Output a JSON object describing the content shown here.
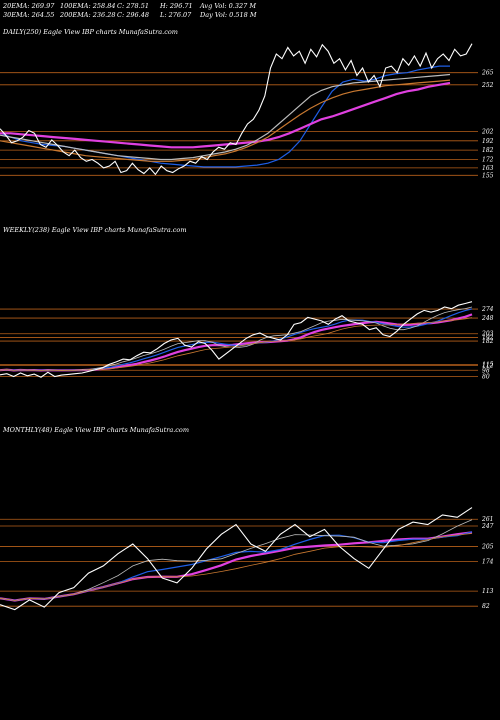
{
  "header": {
    "row1": [
      "20EMA: 269.97",
      "100EMA: 258.84",
      "C: 278.51",
      "H: 296.71",
      "Avg Vol: 0.327 M"
    ],
    "row2": [
      "30EMA: 264.55",
      "200EMA: 236.28",
      "C: 296.48",
      "L: 276.07",
      "Day Vol: 0.518 M"
    ]
  },
  "colors": {
    "price": "#ffffff",
    "ema_blue": "#1e5ee6",
    "ema_pink": "#e040e0",
    "ema_brown": "#c87830",
    "ema_grey": "#bbbbbb",
    "level": "#b8601a"
  },
  "chart_data": [
    {
      "type": "line",
      "title": "DAILY(250) Eagle  View  IBP charts MunafaSutra.com",
      "level_labels": [
        "265",
        "252",
        "202",
        "192",
        "182",
        "172",
        "163",
        "155"
      ],
      "levels": [
        265,
        252,
        202,
        192,
        182,
        172,
        163,
        155
      ],
      "ylim": [
        150,
        300
      ],
      "price": [
        205,
        198,
        190,
        192,
        196,
        203,
        200,
        188,
        185,
        193,
        187,
        180,
        176,
        182,
        174,
        170,
        172,
        168,
        163,
        165,
        170,
        158,
        160,
        168,
        161,
        157,
        163,
        156,
        165,
        160,
        158,
        162,
        165,
        170,
        168,
        175,
        172,
        180,
        185,
        183,
        190,
        188,
        200,
        210,
        215,
        225,
        240,
        270,
        285,
        280,
        292,
        283,
        288,
        275,
        290,
        282,
        295,
        288,
        275,
        280,
        268,
        278,
        262,
        270,
        255,
        262,
        250,
        270,
        272,
        265,
        280,
        273,
        283,
        272,
        286,
        270,
        280,
        285,
        278,
        290,
        283,
        285,
        296
      ],
      "series": [
        {
          "name": "ema_blue",
          "values": [
            200,
            196,
            192,
            190,
            188,
            187,
            186,
            184,
            182,
            180,
            178,
            176,
            174,
            172,
            170,
            168,
            167,
            166,
            165,
            164,
            164,
            164,
            164,
            165,
            166,
            168,
            172,
            180,
            192,
            210,
            228,
            245,
            255,
            258,
            256,
            258,
            262,
            264,
            265,
            268,
            270,
            272,
            272
          ]
        },
        {
          "name": "ema_pink",
          "values": [
            200,
            200,
            199,
            198,
            197,
            196,
            195,
            194,
            193,
            192,
            191,
            190,
            189,
            188,
            187,
            186,
            185,
            185,
            185,
            186,
            187,
            188,
            189,
            190,
            191,
            193,
            196,
            200,
            205,
            210,
            215,
            218,
            222,
            226,
            230,
            234,
            238,
            242,
            245,
            247,
            250,
            252,
            254
          ]
        },
        {
          "name": "ema_grey",
          "values": [
            198,
            196,
            194,
            192,
            190,
            188,
            186,
            184,
            182,
            180,
            178,
            176,
            175,
            174,
            173,
            172,
            172,
            173,
            174,
            176,
            178,
            180,
            183,
            187,
            193,
            200,
            210,
            220,
            230,
            240,
            246,
            250,
            252,
            254,
            255,
            256,
            257,
            258,
            259,
            260,
            261,
            262,
            263
          ]
        },
        {
          "name": "ema_brown",
          "values": [
            192,
            190,
            188,
            186,
            184,
            182,
            180,
            178,
            176,
            175,
            174,
            173,
            172,
            171,
            170,
            170,
            170,
            171,
            172,
            174,
            176,
            178,
            181,
            185,
            190,
            196,
            204,
            212,
            220,
            227,
            233,
            238,
            242,
            245,
            247,
            249,
            251,
            252,
            253,
            254,
            255,
            256,
            257
          ]
        }
      ]
    },
    {
      "type": "line",
      "title": "WEEKLY(238) Eagle  View  IBP charts MunafaSutra.com",
      "level_labels": [
        "274",
        "248",
        "203",
        "192",
        "182",
        "115",
        "112",
        "98",
        "80"
      ],
      "levels": [
        274,
        248,
        203,
        192,
        182,
        115,
        112,
        98,
        80
      ],
      "ylim": [
        70,
        300
      ],
      "price": [
        85,
        88,
        80,
        90,
        82,
        87,
        78,
        92,
        80,
        84,
        86,
        88,
        90,
        95,
        100,
        105,
        115,
        122,
        130,
        128,
        140,
        150,
        148,
        160,
        175,
        185,
        190,
        170,
        165,
        180,
        175,
        155,
        130,
        145,
        160,
        175,
        190,
        200,
        205,
        195,
        190,
        185,
        200,
        230,
        235,
        250,
        245,
        240,
        230,
        245,
        255,
        240,
        235,
        230,
        215,
        220,
        200,
        195,
        210,
        230,
        245,
        260,
        270,
        265,
        270,
        280,
        275,
        285,
        290,
        295
      ]
    },
    {
      "type": "line",
      "title": "MONTHLY(48) Eagle  View  IBP charts MunafaSutra.com",
      "level_labels": [
        "261",
        "247",
        "205",
        "174",
        "113",
        "82"
      ],
      "levels": [
        261,
        247,
        205,
        174,
        113,
        82
      ],
      "ylim": [
        70,
        280
      ],
      "price": [
        85,
        75,
        95,
        80,
        110,
        120,
        150,
        165,
        190,
        210,
        180,
        140,
        130,
        160,
        200,
        230,
        250,
        210,
        195,
        230,
        250,
        225,
        240,
        205,
        180,
        160,
        200,
        240,
        255,
        250,
        270,
        265,
        285
      ]
    }
  ]
}
